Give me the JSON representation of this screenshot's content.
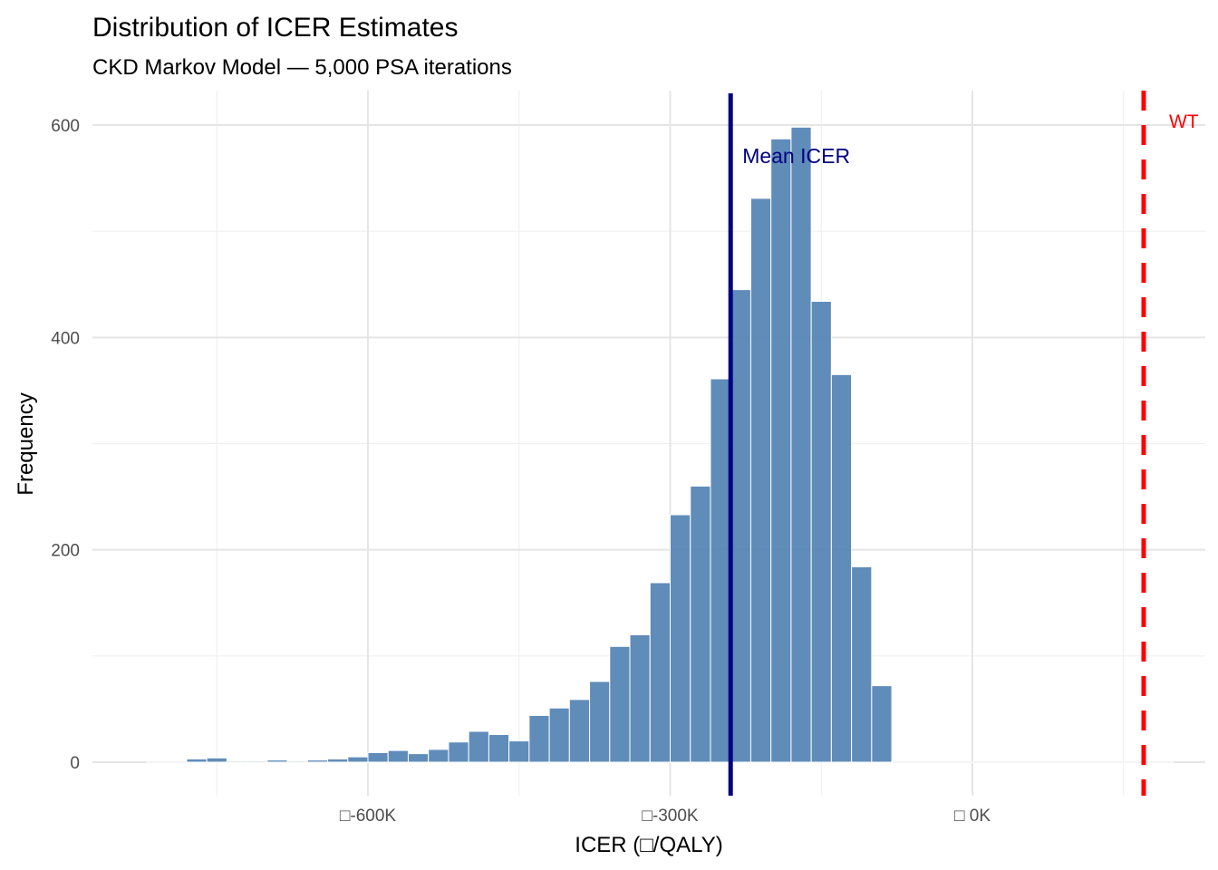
{
  "chart_data": {
    "type": "bar",
    "subtype": "histogram",
    "title": "Distribution of ICER Estimates",
    "subtitle": "CKD Markov Model — 5,000 PSA iterations",
    "xlabel": "ICER (□/QALY)",
    "ylabel": "Frequency",
    "x_unit": "K",
    "bin_width": 20,
    "bin_start": -780,
    "xlim": [
      -860,
      230
    ],
    "ylim": [
      -25,
      640
    ],
    "x_ticks": [
      {
        "value": -600,
        "label": "□-600K"
      },
      {
        "value": -300,
        "label": "□-300K"
      },
      {
        "value": 0,
        "label": "□   0K"
      }
    ],
    "y_ticks": [
      {
        "value": 0,
        "label": "0"
      },
      {
        "value": 200,
        "label": "200"
      },
      {
        "value": 400,
        "label": "400"
      },
      {
        "value": 600,
        "label": "600"
      }
    ],
    "grid": true,
    "values": [
      3,
      4,
      1,
      1,
      2,
      1,
      2,
      3,
      5,
      9,
      11,
      8,
      12,
      19,
      29,
      26,
      20,
      44,
      51,
      59,
      76,
      109,
      120,
      169,
      233,
      260,
      361,
      445,
      531,
      587,
      598,
      434,
      365,
      184,
      72
    ],
    "bar_color": "#4f7fb3",
    "annotations": [
      {
        "type": "vline",
        "name": "mean-icer",
        "x": -240,
        "label": "Mean ICER",
        "color": "#000080",
        "style": "solid"
      },
      {
        "type": "vline",
        "name": "wtp-threshold",
        "x": 170,
        "label": "WT",
        "color": "#ff0000",
        "style": "dashed"
      }
    ]
  }
}
